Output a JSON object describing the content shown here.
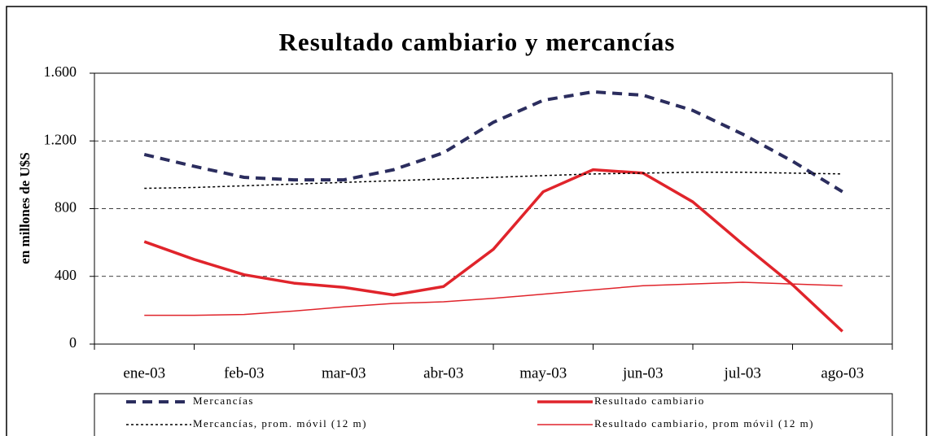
{
  "chart_data": {
    "type": "line",
    "title": "Resultado cambiario y mercancías",
    "y_label": "en millones de U$S",
    "categories": [
      "ene-03",
      null,
      "feb-03",
      null,
      "mar-03",
      null,
      "abr-03",
      null,
      "may-03",
      null,
      "jun-03",
      null,
      "jul-03",
      null,
      "ago-03"
    ],
    "series": [
      {
        "name": "Mercancías",
        "color": "#2b2d5e",
        "style": "dashed",
        "width": 4,
        "values": [
          1120,
          1050,
          985,
          970,
          970,
          1030,
          1130,
          1310,
          1440,
          1490,
          1470,
          1380,
          1240,
          1080,
          900
        ]
      },
      {
        "name": "Resultado cambiario",
        "color": "#e0242b",
        "style": "solid",
        "width": 3.5,
        "values": [
          605,
          500,
          410,
          360,
          335,
          290,
          340,
          560,
          900,
          1030,
          1010,
          840,
          590,
          350,
          75
        ]
      },
      {
        "name": "Mercancías, prom. móvil (12 m)",
        "color": "#000000",
        "style": "dotted",
        "width": 1.5,
        "values": [
          920,
          925,
          935,
          945,
          955,
          965,
          975,
          985,
          995,
          1005,
          1010,
          1015,
          1015,
          1010,
          1005
        ]
      },
      {
        "name": "Resultado cambiario, prom móvil (12 m)",
        "color": "#e0242b",
        "style": "solid",
        "width": 1.5,
        "values": [
          170,
          170,
          175,
          195,
          220,
          240,
          250,
          270,
          295,
          320,
          345,
          355,
          365,
          355,
          345
        ]
      }
    ],
    "ylim": [
      0,
      1600
    ],
    "yticks": [
      0,
      400,
      800,
      {
        "value": 1200,
        "label": "1.200"
      },
      {
        "value": 1600,
        "label": "1.600"
      }
    ],
    "grid": true,
    "legend": "bottom"
  }
}
